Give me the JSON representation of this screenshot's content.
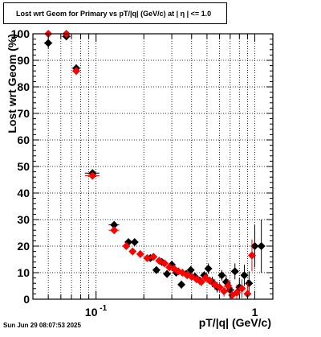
{
  "page": {
    "timestamp": "Sun Jun 29 08:07:53 2025"
  },
  "chart_data": {
    "type": "scatter",
    "title": "Lost wrt Geom for Primary vs pT/|q| (GeV/c) at |  η  | <= 1.0",
    "xlabel": "pT/|q| (GeV/c)",
    "ylabel": "Lost wrt Geom (%)",
    "x_scale": "log",
    "xlim": [
      0.04,
      1.3
    ],
    "ylim": [
      0,
      100
    ],
    "y_ticks": [
      0,
      10,
      20,
      30,
      40,
      50,
      60,
      70,
      80,
      90,
      100
    ],
    "x_tick_labels": [
      {
        "value": 0.1,
        "base": "10",
        "exp": "-1"
      },
      {
        "value": 1,
        "base": "1",
        "exp": ""
      }
    ],
    "grid": true,
    "series": [
      {
        "color": "#000000",
        "marker": "diamond",
        "points": [
          {
            "x": 0.05,
            "y": 96.5,
            "xerr": 0.003,
            "yerr": 2.0
          },
          {
            "x": 0.065,
            "y": 99.0,
            "xerr": 0.004,
            "yerr": 1.0
          },
          {
            "x": 0.075,
            "y": 87.0,
            "xerr": 0.004,
            "yerr": 1.5
          },
          {
            "x": 0.095,
            "y": 47.5,
            "xerr": 0.01,
            "yerr": 1.0
          },
          {
            "x": 0.13,
            "y": 28.0,
            "xerr": 0.01,
            "yerr": 1.0
          },
          {
            "x": 0.16,
            "y": 21.5,
            "xerr": 0.008,
            "yerr": 1.0
          },
          {
            "x": 0.175,
            "y": 21.5,
            "xerr": 0.008,
            "yerr": 1.0
          },
          {
            "x": 0.22,
            "y": 15.5,
            "xerr": 0.005,
            "yerr": 1.0
          },
          {
            "x": 0.24,
            "y": 11.0,
            "xerr": 0.005,
            "yerr": 1.0
          },
          {
            "x": 0.26,
            "y": 14.0,
            "xerr": 0.005,
            "yerr": 1.0
          },
          {
            "x": 0.28,
            "y": 9.5,
            "xerr": 0.005,
            "yerr": 1.0
          },
          {
            "x": 0.3,
            "y": 13.0,
            "xerr": 0.005,
            "yerr": 1.0
          },
          {
            "x": 0.32,
            "y": 10.0,
            "xerr": 0.005,
            "yerr": 1.0
          },
          {
            "x": 0.345,
            "y": 5.5,
            "xerr": 0.005,
            "yerr": 1.5
          },
          {
            "x": 0.37,
            "y": 9.5,
            "xerr": 0.005,
            "yerr": 1.5
          },
          {
            "x": 0.395,
            "y": 11.0,
            "xerr": 0.005,
            "yerr": 1.5
          },
          {
            "x": 0.42,
            "y": 8.5,
            "xerr": 0.005,
            "yerr": 1.5
          },
          {
            "x": 0.45,
            "y": 7.0,
            "xerr": 0.005,
            "yerr": 1.5
          },
          {
            "x": 0.48,
            "y": 9.0,
            "xerr": 0.005,
            "yerr": 1.5
          },
          {
            "x": 0.51,
            "y": 11.5,
            "xerr": 0.005,
            "yerr": 2.0
          },
          {
            "x": 0.54,
            "y": 6.5,
            "xerr": 0.005,
            "yerr": 2.0
          },
          {
            "x": 0.58,
            "y": 4.5,
            "xerr": 0.005,
            "yerr": 2.0
          },
          {
            "x": 0.62,
            "y": 9.0,
            "xerr": 0.005,
            "yerr": 2.0
          },
          {
            "x": 0.66,
            "y": 6.5,
            "xerr": 0.005,
            "yerr": 2.5
          },
          {
            "x": 0.7,
            "y": 3.5,
            "xerr": 0.005,
            "yerr": 3.0
          },
          {
            "x": 0.75,
            "y": 10.5,
            "xerr": 0.005,
            "yerr": 3.0
          },
          {
            "x": 0.8,
            "y": 4.5,
            "xerr": 0.005,
            "yerr": 3.5
          },
          {
            "x": 0.86,
            "y": 9.0,
            "xerr": 0.005,
            "yerr": 4.0
          },
          {
            "x": 0.92,
            "y": 6.0,
            "xerr": 0.005,
            "yerr": 4.5
          },
          {
            "x": 1.0,
            "y": 20.0,
            "xerr": 0.01,
            "yerr": 8.0
          },
          {
            "x": 1.1,
            "y": 20.0,
            "xerr": 0.01,
            "yerr": 10.0
          }
        ]
      },
      {
        "color": "#ff0000",
        "marker": "diamond",
        "points": [
          {
            "x": 0.05,
            "y": 100.0,
            "xerr": 0.003,
            "yerr": 0.5
          },
          {
            "x": 0.065,
            "y": 100.0,
            "xerr": 0.004,
            "yerr": 0.5
          },
          {
            "x": 0.075,
            "y": 86.0,
            "xerr": 0.004,
            "yerr": 1.5
          },
          {
            "x": 0.095,
            "y": 46.5,
            "xerr": 0.01,
            "yerr": 1.0
          },
          {
            "x": 0.13,
            "y": 26.0,
            "xerr": 0.01,
            "yerr": 1.0
          },
          {
            "x": 0.155,
            "y": 20.0,
            "xerr": 0.008,
            "yerr": 1.0
          },
          {
            "x": 0.17,
            "y": 18.0,
            "xerr": 0.008,
            "yerr": 1.0
          },
          {
            "x": 0.19,
            "y": 17.0,
            "xerr": 0.006,
            "yerr": 1.0
          },
          {
            "x": 0.21,
            "y": 15.5,
            "xerr": 0.005,
            "yerr": 1.0
          },
          {
            "x": 0.23,
            "y": 16.0,
            "xerr": 0.005,
            "yerr": 1.0
          },
          {
            "x": 0.25,
            "y": 14.5,
            "xerr": 0.005,
            "yerr": 1.0
          },
          {
            "x": 0.27,
            "y": 13.5,
            "xerr": 0.005,
            "yerr": 1.0
          },
          {
            "x": 0.29,
            "y": 12.0,
            "xerr": 0.005,
            "yerr": 1.0
          },
          {
            "x": 0.31,
            "y": 11.5,
            "xerr": 0.005,
            "yerr": 1.0
          },
          {
            "x": 0.33,
            "y": 10.5,
            "xerr": 0.005,
            "yerr": 1.0
          },
          {
            "x": 0.35,
            "y": 10.0,
            "xerr": 0.005,
            "yerr": 1.0
          },
          {
            "x": 0.375,
            "y": 9.0,
            "xerr": 0.005,
            "yerr": 1.0
          },
          {
            "x": 0.4,
            "y": 8.5,
            "xerr": 0.005,
            "yerr": 1.0
          },
          {
            "x": 0.43,
            "y": 7.5,
            "xerr": 0.005,
            "yerr": 1.5
          },
          {
            "x": 0.46,
            "y": 6.5,
            "xerr": 0.005,
            "yerr": 1.5
          },
          {
            "x": 0.49,
            "y": 8.0,
            "xerr": 0.005,
            "yerr": 1.5
          },
          {
            "x": 0.52,
            "y": 7.0,
            "xerr": 0.005,
            "yerr": 1.5
          },
          {
            "x": 0.56,
            "y": 5.5,
            "xerr": 0.005,
            "yerr": 2.0
          },
          {
            "x": 0.6,
            "y": 4.5,
            "xerr": 0.005,
            "yerr": 2.0
          },
          {
            "x": 0.64,
            "y": 3.0,
            "xerr": 0.005,
            "yerr": 2.0
          },
          {
            "x": 0.68,
            "y": 5.0,
            "xerr": 0.005,
            "yerr": 2.5
          },
          {
            "x": 0.72,
            "y": 1.5,
            "xerr": 0.005,
            "yerr": 3.0
          },
          {
            "x": 0.77,
            "y": 2.5,
            "xerr": 0.005,
            "yerr": 3.0
          },
          {
            "x": 0.83,
            "y": 4.0,
            "xerr": 0.005,
            "yerr": 3.5
          },
          {
            "x": 0.9,
            "y": 2.0,
            "xerr": 0.005,
            "yerr": 4.0
          },
          {
            "x": 0.96,
            "y": 16.5,
            "xerr": 0.01,
            "yerr": 6.0
          }
        ]
      }
    ]
  }
}
